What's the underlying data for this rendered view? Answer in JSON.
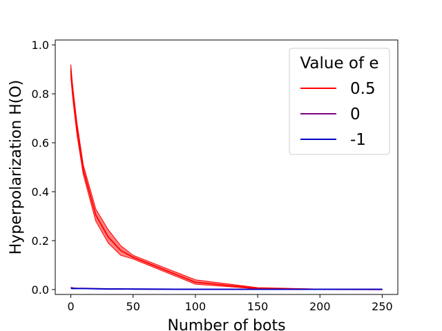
{
  "chart_data": {
    "type": "line",
    "title": "",
    "xlabel": "Number of bots",
    "ylabel": "Hyperpolarization H(O)",
    "xlim": [
      -12.5,
      262.5
    ],
    "ylim": [
      -0.02,
      1.02
    ],
    "xticks": [
      0,
      50,
      100,
      150,
      200,
      250
    ],
    "yticks": [
      0.0,
      0.2,
      0.4,
      0.6,
      0.8,
      1.0
    ],
    "xtick_labels": [
      "0",
      "50",
      "100",
      "150",
      "200",
      "250"
    ],
    "ytick_labels": [
      "0.0",
      "0.2",
      "0.4",
      "0.6",
      "0.8",
      "1.0"
    ],
    "grid": false,
    "legend": {
      "title": "Value of e",
      "placement": "top-right"
    },
    "x": [
      0,
      1,
      2,
      5,
      10,
      20,
      30,
      40,
      50,
      100,
      150,
      200,
      250
    ],
    "series": [
      {
        "name": "0.5",
        "color": "#ff0000",
        "values": [
          0.895,
          0.84,
          0.79,
          0.66,
          0.49,
          0.305,
          0.215,
          0.16,
          0.132,
          0.03,
          0.005,
          0.001,
          0.0
        ],
        "lower": [
          0.87,
          0.81,
          0.76,
          0.63,
          0.47,
          0.28,
          0.19,
          0.14,
          0.125,
          0.022,
          0.003,
          0.0,
          0.0
        ],
        "upper": [
          0.92,
          0.86,
          0.81,
          0.68,
          0.51,
          0.33,
          0.245,
          0.18,
          0.14,
          0.04,
          0.008,
          0.002,
          0.001
        ]
      },
      {
        "name": "0",
        "color": "#800080",
        "values": [
          0.008,
          0.007,
          0.006,
          0.005,
          0.005,
          0.004,
          0.003,
          0.003,
          0.002,
          0.001,
          0.001,
          0.001,
          0.001
        ]
      },
      {
        "name": "-1",
        "color": "#0000cc",
        "values": [
          0.005,
          0.004,
          0.004,
          0.004,
          0.004,
          0.003,
          0.002,
          0.002,
          0.002,
          0.001,
          0.001,
          0.001,
          0.001
        ]
      }
    ]
  }
}
